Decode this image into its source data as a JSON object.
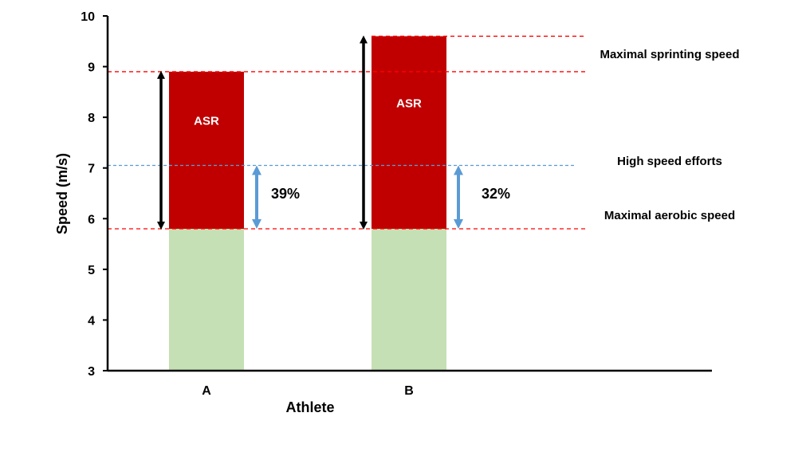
{
  "chart_data": {
    "type": "bar",
    "xlabel": "Athlete",
    "ylabel": "Speed (m/s)",
    "ylim": [
      3,
      10
    ],
    "yticks": [
      "3",
      "4",
      "5",
      "6",
      "7",
      "8",
      "9",
      "10"
    ],
    "grid": false,
    "categories": [
      "A",
      "B"
    ],
    "series": [
      {
        "values": [
          5.8,
          5.8
        ],
        "color": "#c5e0b4"
      },
      {
        "label": "ASR",
        "values": [
          8.9,
          9.6
        ],
        "color": "#c00000"
      }
    ],
    "reference_lines": [
      {
        "label": "Maximal sprinting speed",
        "color": "#ff0000",
        "style": "dashed",
        "segments": [
          {
            "value": 9.6,
            "from": "B",
            "to": "right"
          },
          {
            "value": 8.9,
            "from": "A",
            "to": "right"
          }
        ]
      },
      {
        "label": "High speed efforts",
        "value": 7.05,
        "color": "#5b9bd5",
        "style": "dashed"
      },
      {
        "label": "Maximal aerobic speed",
        "value": 5.8,
        "color": "#ff0000",
        "style": "dashed"
      }
    ],
    "annotations": [
      {
        "category": "A",
        "label": "39%",
        "from": 5.8,
        "to": 7.05,
        "arrow_color": "#5b9bd5"
      },
      {
        "category": "B",
        "label": "32%",
        "from": 5.8,
        "to": 7.05,
        "arrow_color": "#5b9bd5"
      }
    ],
    "range_arrows": [
      {
        "category": "A",
        "from": 5.8,
        "to": 8.9,
        "color": "#000000"
      },
      {
        "category": "B",
        "from": 5.8,
        "to": 9.6,
        "color": "#000000"
      }
    ],
    "line_labels": [
      "Maximal sprinting speed",
      "High speed efforts",
      "Maximal aerobic speed"
    ]
  }
}
